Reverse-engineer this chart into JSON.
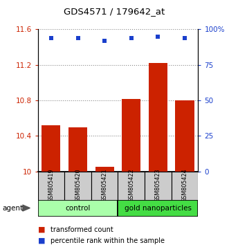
{
  "title": "GDS4571 / 179642_at",
  "samples": [
    "GSM805419",
    "GSM805420",
    "GSM805421",
    "GSM805422",
    "GSM805423",
    "GSM805424"
  ],
  "transformed_counts": [
    10.52,
    10.5,
    10.05,
    10.82,
    11.22,
    10.8
  ],
  "percentile_ranks": [
    94,
    94,
    92,
    94,
    95,
    94
  ],
  "ylim_left": [
    10.0,
    11.6
  ],
  "ylim_right": [
    0,
    100
  ],
  "yticks_left": [
    10.0,
    10.4,
    10.8,
    11.2,
    11.6
  ],
  "ytick_labels_left": [
    "10",
    "10.4",
    "10.8",
    "11.2",
    "11.6"
  ],
  "yticks_right": [
    0,
    25,
    50,
    75,
    100
  ],
  "ytick_labels_right": [
    "0",
    "25",
    "50",
    "75",
    "100%"
  ],
  "bar_color": "#cc2200",
  "dot_color": "#1a3fcc",
  "groups": [
    {
      "label": "control",
      "indices": [
        0,
        1,
        2
      ],
      "color": "#aaffaa"
    },
    {
      "label": "gold nanoparticles",
      "indices": [
        3,
        4,
        5
      ],
      "color": "#44dd44"
    }
  ],
  "group_row_label": "agent",
  "sample_box_color": "#cccccc",
  "legend_red_label": "transformed count",
  "legend_blue_label": "percentile rank within the sample",
  "grid_linestyle": "dotted",
  "grid_color": "#888888"
}
